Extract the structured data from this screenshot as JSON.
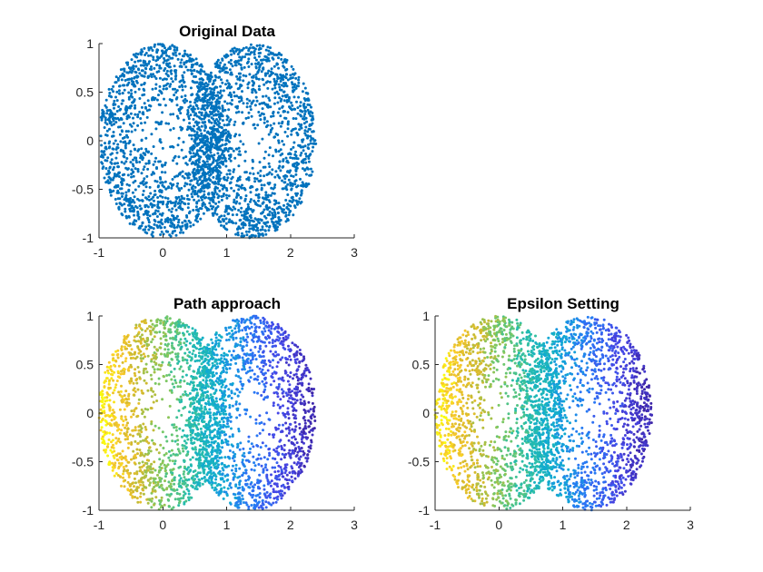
{
  "chart_data": [
    {
      "type": "scatter",
      "title": "Original Data",
      "xlim": [
        -1,
        3
      ],
      "ylim": [
        -1,
        1
      ],
      "xticks": [
        "-1",
        "0",
        "1",
        "2",
        "3"
      ],
      "yticks": [
        "1",
        "0.5",
        "0",
        "-0.5",
        "-1"
      ],
      "xlabel": "",
      "ylabel": "",
      "grid": false,
      "coloring": "single",
      "color": "#0072BD",
      "series": [
        {
          "shape": "filled ellipse",
          "center": [
            0,
            0
          ],
          "x_radius": 1,
          "y_radius": 1,
          "n_points": 1500
        },
        {
          "shape": "filled ellipse",
          "center": [
            1.4,
            0
          ],
          "x_radius": 1,
          "y_radius": 1,
          "n_points": 1500
        }
      ]
    },
    {
      "type": "scatter",
      "title": "Path approach",
      "xlim": [
        -1,
        3
      ],
      "ylim": [
        -1,
        1
      ],
      "xticks": [
        "-1",
        "0",
        "1",
        "2",
        "3"
      ],
      "yticks": [
        "1",
        "0.5",
        "0",
        "-0.5",
        "-1"
      ],
      "xlabel": "",
      "ylabel": "",
      "grid": false,
      "coloring": "parula colormap by x (yellow left to dark blue right)",
      "series": [
        {
          "shape": "filled ellipse",
          "center": [
            0,
            0
          ],
          "x_radius": 1,
          "y_radius": 1,
          "n_points": 1500
        },
        {
          "shape": "filled ellipse",
          "center": [
            1.4,
            0
          ],
          "x_radius": 1,
          "y_radius": 1,
          "n_points": 1500
        }
      ]
    },
    {
      "type": "scatter",
      "title": "Epsilon Setting",
      "xlim": [
        -1,
        3
      ],
      "ylim": [
        -1,
        1
      ],
      "xticks": [
        "-1",
        "0",
        "1",
        "2",
        "3"
      ],
      "yticks": [
        "1",
        "0.5",
        "0",
        "-0.5",
        "-1"
      ],
      "xlabel": "",
      "ylabel": "",
      "grid": false,
      "coloring": "parula colormap by x (yellow left to dark blue right)",
      "series": [
        {
          "shape": "filled ellipse",
          "center": [
            0,
            0
          ],
          "x_radius": 1,
          "y_radius": 1,
          "n_points": 1500
        },
        {
          "shape": "filled ellipse",
          "center": [
            1.4,
            0
          ],
          "x_radius": 1,
          "y_radius": 1,
          "n_points": 1500
        }
      ]
    }
  ]
}
